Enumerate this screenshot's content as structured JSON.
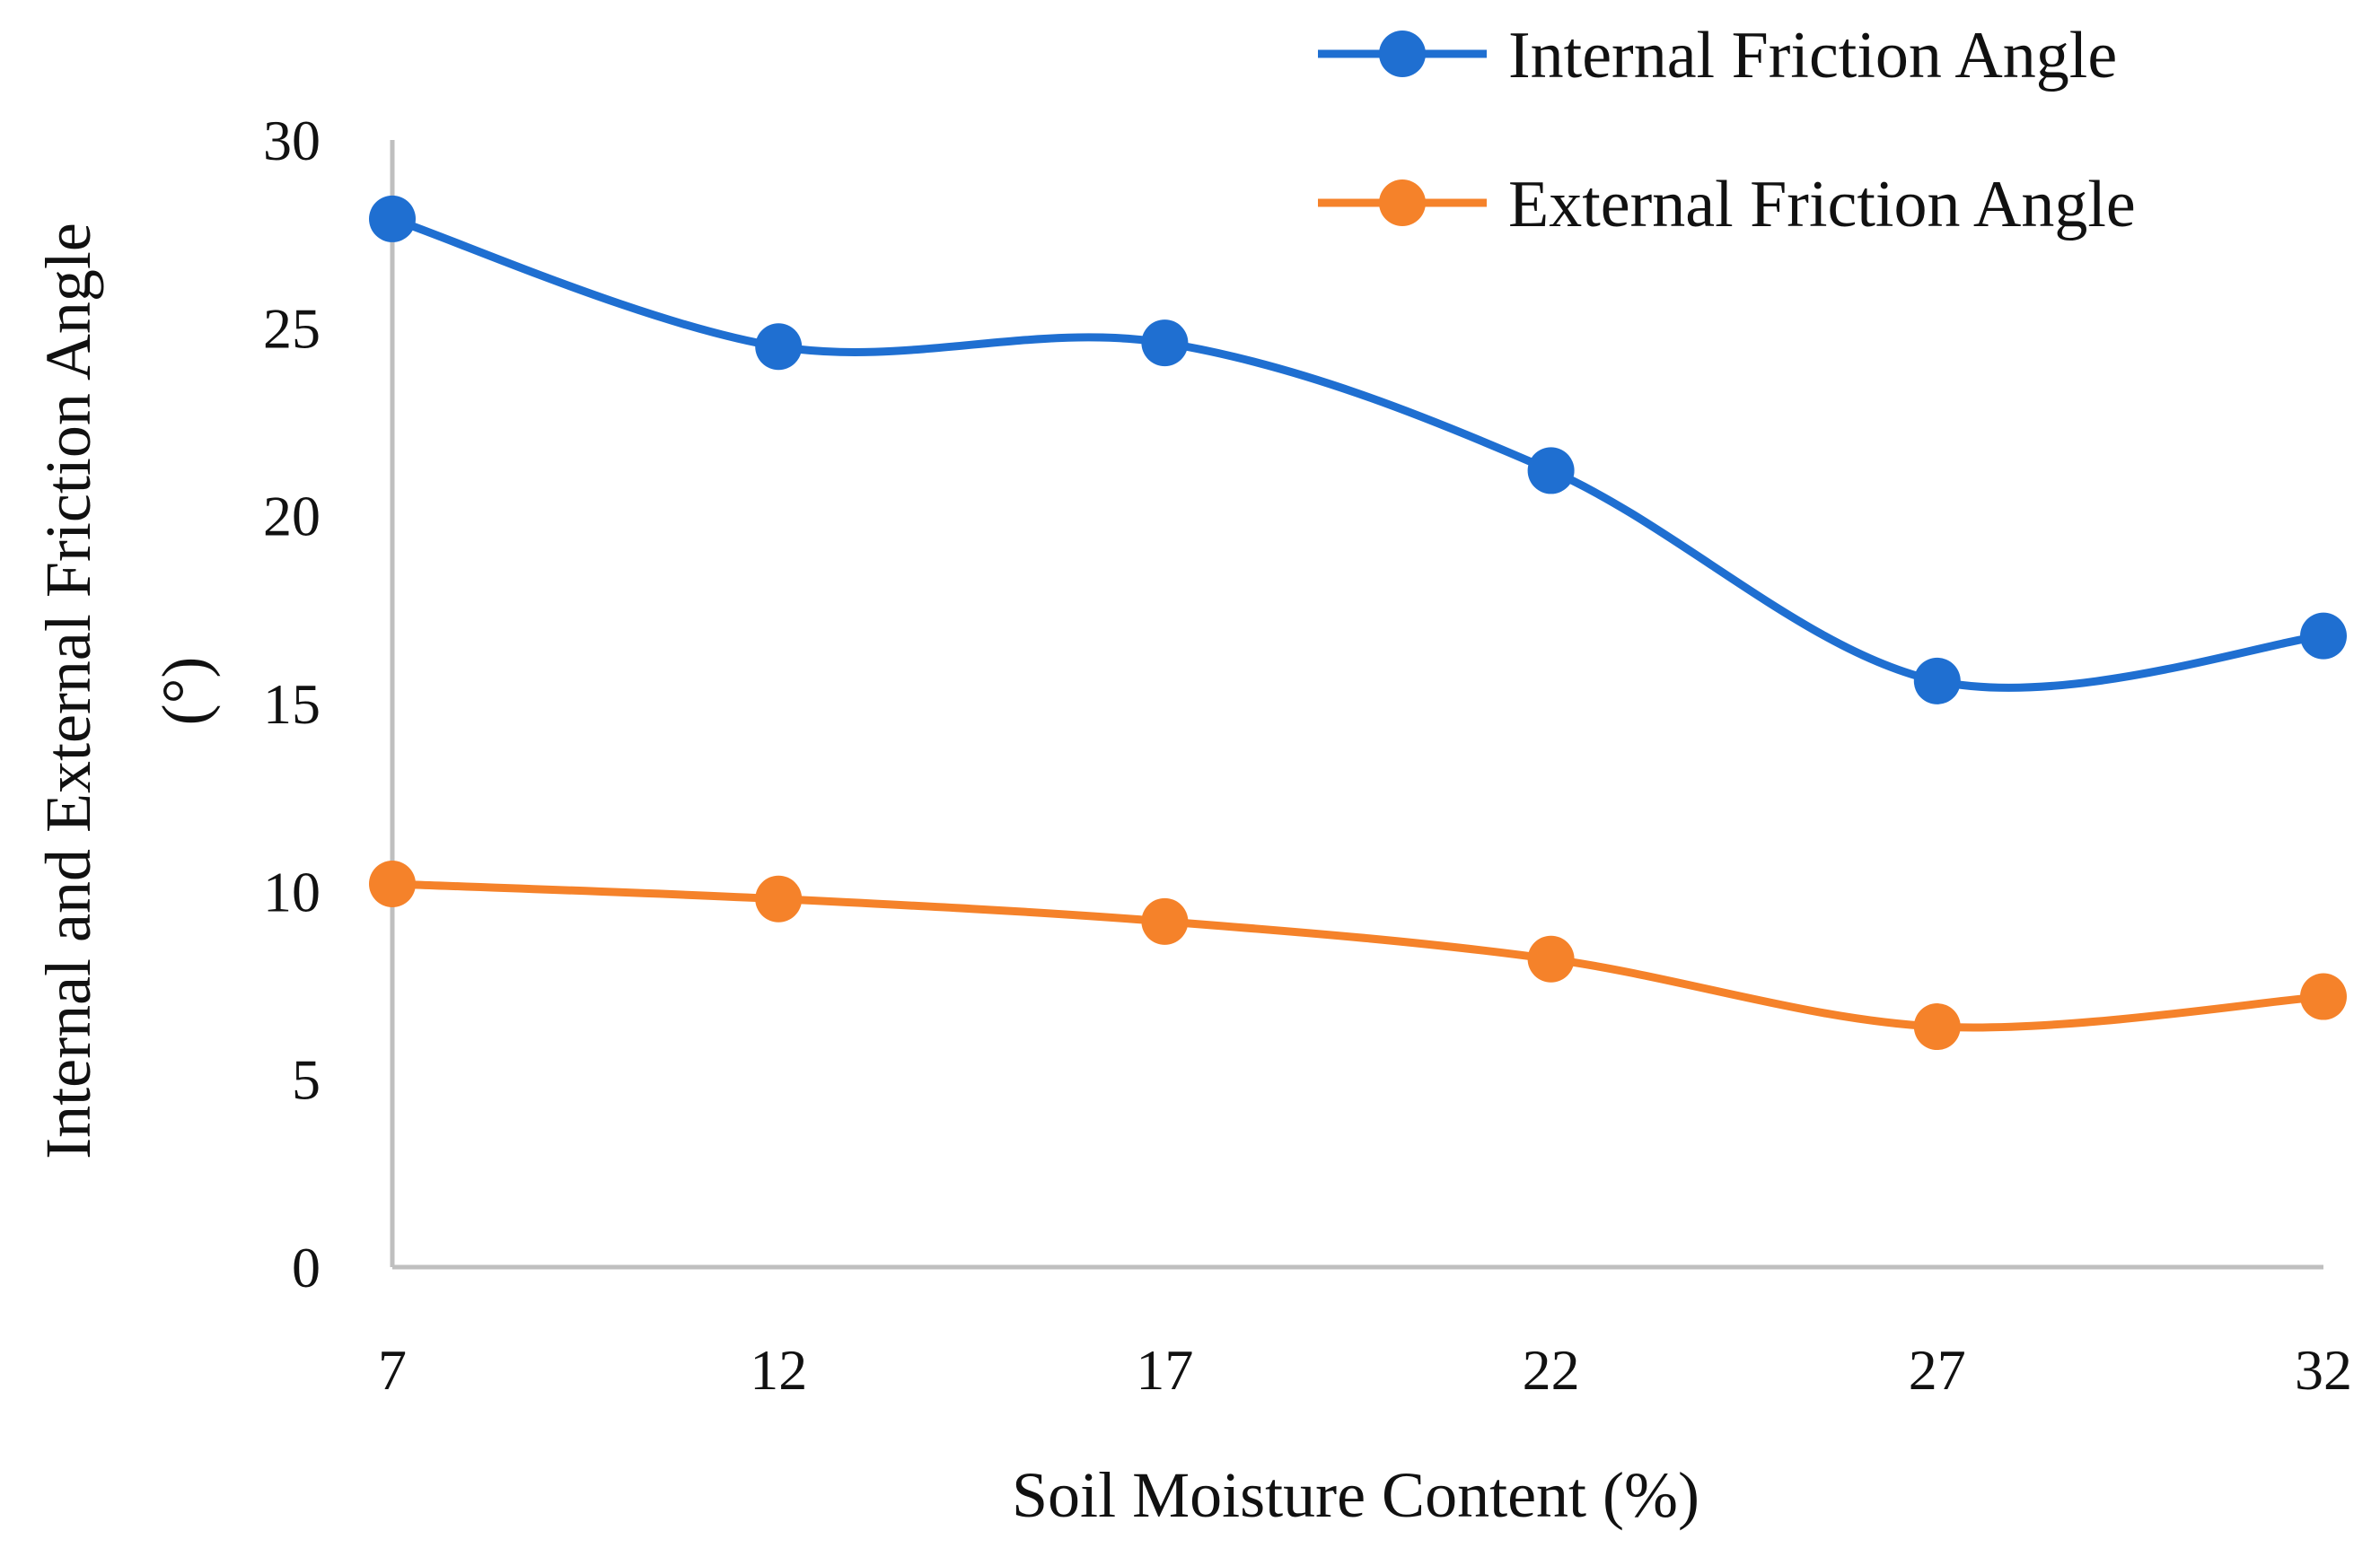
{
  "chart_data": {
    "type": "line",
    "title": "",
    "xlabel": "Soil Moisture Content (%)",
    "ylabel_line1": "Internal and External Friction Angle",
    "ylabel_line2": "(°)",
    "categories": [
      "7",
      "12",
      "17",
      "22",
      "27",
      "32"
    ],
    "x": [
      7,
      12,
      17,
      22,
      27,
      32
    ],
    "ylim": [
      0,
      30
    ],
    "yticks": [
      "0",
      "5",
      "10",
      "15",
      "20",
      "25",
      "30"
    ],
    "yticks_values": [
      0,
      5,
      10,
      15,
      20,
      25,
      30
    ],
    "grid": false,
    "legend_position": "top-right",
    "series": [
      {
        "name": "Internal Friction Angle",
        "color": "#1f6fd1",
        "values": [
          27.9,
          24.5,
          24.6,
          21.2,
          15.6,
          16.8
        ]
      },
      {
        "name": "External Friction Angle",
        "color": "#f5822a",
        "values": [
          10.2,
          9.8,
          9.2,
          8.2,
          6.4,
          7.2
        ]
      }
    ],
    "axis_color": "#bfbfbf"
  }
}
